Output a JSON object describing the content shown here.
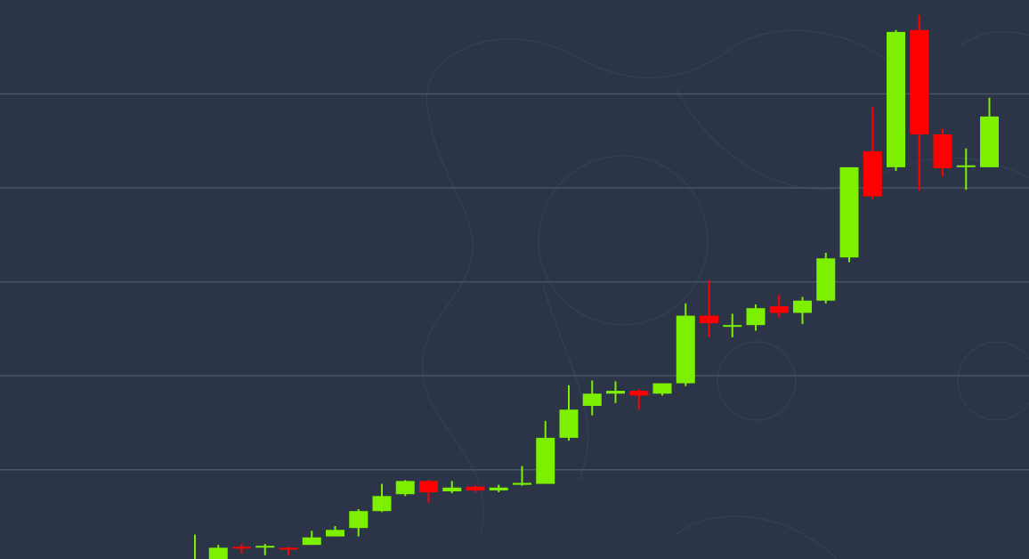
{
  "chart_data": {
    "type": "candlestick",
    "grid": "horizontal",
    "colors": {
      "background": "#2b3547",
      "up": "#7cf000",
      "down": "#ff0000",
      "grid": "#4a5568"
    },
    "ylim": [
      0,
      59.5
    ],
    "y_gridlines": [
      9.5,
      19.5,
      29.5,
      39.5,
      49.5
    ],
    "candles": [
      {
        "open": 0.0,
        "high": 2.6,
        "low": 0.0,
        "close": 0.0,
        "dir": "up"
      },
      {
        "open": 0.0,
        "high": 1.5,
        "low": 0.0,
        "close": 1.2,
        "dir": "up"
      },
      {
        "open": 1.3,
        "high": 1.6,
        "low": 0.6,
        "close": 1.2,
        "dir": "down"
      },
      {
        "open": 1.3,
        "high": 1.6,
        "low": 0.4,
        "close": 1.4,
        "dir": "up"
      },
      {
        "open": 1.2,
        "high": 1.3,
        "low": 0.4,
        "close": 1.0,
        "dir": "down"
      },
      {
        "open": 1.5,
        "high": 3.0,
        "low": 1.5,
        "close": 2.3,
        "dir": "up"
      },
      {
        "open": 2.4,
        "high": 3.5,
        "low": 2.4,
        "close": 3.1,
        "dir": "up"
      },
      {
        "open": 3.3,
        "high": 5.3,
        "low": 2.4,
        "close": 5.1,
        "dir": "up"
      },
      {
        "open": 5.1,
        "high": 8.0,
        "low": 5.0,
        "close": 6.7,
        "dir": "up"
      },
      {
        "open": 6.9,
        "high": 8.4,
        "low": 6.7,
        "close": 8.3,
        "dir": "up"
      },
      {
        "open": 8.3,
        "high": 8.4,
        "low": 6.0,
        "close": 7.1,
        "dir": "down"
      },
      {
        "open": 7.2,
        "high": 8.3,
        "low": 7.0,
        "close": 7.6,
        "dir": "up"
      },
      {
        "open": 7.7,
        "high": 7.8,
        "low": 7.1,
        "close": 7.3,
        "dir": "down"
      },
      {
        "open": 7.3,
        "high": 7.9,
        "low": 7.1,
        "close": 7.6,
        "dir": "up"
      },
      {
        "open": 7.9,
        "high": 9.9,
        "low": 7.8,
        "close": 8.1,
        "dir": "up"
      },
      {
        "open": 8.0,
        "high": 14.7,
        "low": 8.0,
        "close": 12.9,
        "dir": "up"
      },
      {
        "open": 12.9,
        "high": 18.5,
        "low": 12.6,
        "close": 15.9,
        "dir": "up"
      },
      {
        "open": 16.3,
        "high": 19.0,
        "low": 15.3,
        "close": 17.6,
        "dir": "up"
      },
      {
        "open": 17.6,
        "high": 18.9,
        "low": 16.6,
        "close": 17.9,
        "dir": "up"
      },
      {
        "open": 17.9,
        "high": 18.1,
        "low": 15.9,
        "close": 17.4,
        "dir": "down"
      },
      {
        "open": 17.6,
        "high": 18.6,
        "low": 17.4,
        "close": 18.7,
        "dir": "up"
      },
      {
        "open": 18.7,
        "high": 27.2,
        "low": 18.4,
        "close": 25.9,
        "dir": "up"
      },
      {
        "open": 25.9,
        "high": 29.7,
        "low": 23.6,
        "close": 25.1,
        "dir": "down"
      },
      {
        "open": 24.8,
        "high": 26.1,
        "low": 23.6,
        "close": 24.9,
        "dir": "up"
      },
      {
        "open": 24.9,
        "high": 27.1,
        "low": 24.3,
        "close": 26.7,
        "dir": "up"
      },
      {
        "open": 26.9,
        "high": 28.1,
        "low": 25.7,
        "close": 26.2,
        "dir": "down"
      },
      {
        "open": 26.2,
        "high": 27.9,
        "low": 25.0,
        "close": 27.5,
        "dir": "up"
      },
      {
        "open": 27.5,
        "high": 32.6,
        "low": 27.2,
        "close": 32.0,
        "dir": "up"
      },
      {
        "open": 32.1,
        "high": 41.6,
        "low": 31.6,
        "close": 41.7,
        "dir": "up"
      },
      {
        "open": 43.4,
        "high": 48.1,
        "low": 38.3,
        "close": 38.6,
        "dir": "down"
      },
      {
        "open": 41.7,
        "high": 56.3,
        "low": 41.3,
        "close": 56.1,
        "dir": "up"
      },
      {
        "open": 56.3,
        "high": 57.9,
        "low": 39.2,
        "close": 45.2,
        "dir": "down"
      },
      {
        "open": 45.2,
        "high": 45.8,
        "low": 40.7,
        "close": 41.6,
        "dir": "down"
      },
      {
        "open": 41.9,
        "high": 43.7,
        "low": 39.3,
        "close": 41.8,
        "dir": "up"
      },
      {
        "open": 41.7,
        "high": 49.1,
        "low": 41.7,
        "close": 47.1,
        "dir": "up"
      }
    ]
  }
}
